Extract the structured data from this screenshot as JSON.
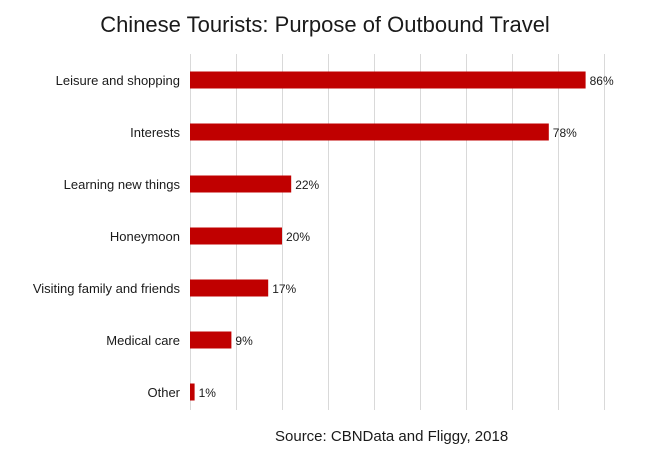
{
  "chart_data": {
    "type": "bar",
    "orientation": "horizontal",
    "title": "Chinese Tourists: Purpose of Outbound Travel",
    "source": "Source: CBNData and Fliggy, 2018",
    "categories": [
      "Leisure and shopping",
      "Interests",
      "Learning new things",
      "Honeymoon",
      "Visiting family and friends",
      "Medical care",
      "Other"
    ],
    "values": [
      86,
      78,
      22,
      20,
      17,
      9,
      1
    ],
    "data_labels": [
      "86%",
      "78%",
      "22%",
      "20%",
      "17%",
      "9%",
      "1%"
    ],
    "value_unit": "%",
    "xlim": [
      0,
      100
    ],
    "grid": true,
    "legend": "none",
    "colors": {
      "bar": "#c00000",
      "grid": "#d9d9d9",
      "text": "#1a1a1a"
    }
  }
}
